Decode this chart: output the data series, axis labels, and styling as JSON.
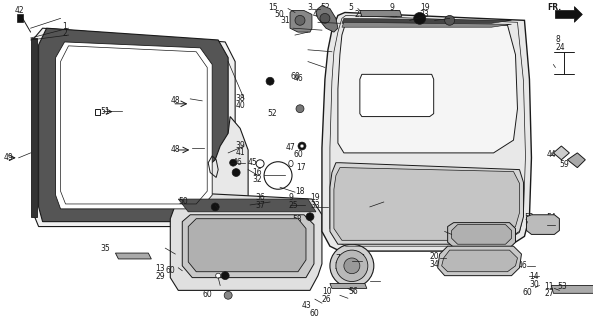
{
  "bg_color": "#ffffff",
  "lc": "#1a1a1a",
  "fig_width": 5.94,
  "fig_height": 3.2,
  "dpi": 100
}
